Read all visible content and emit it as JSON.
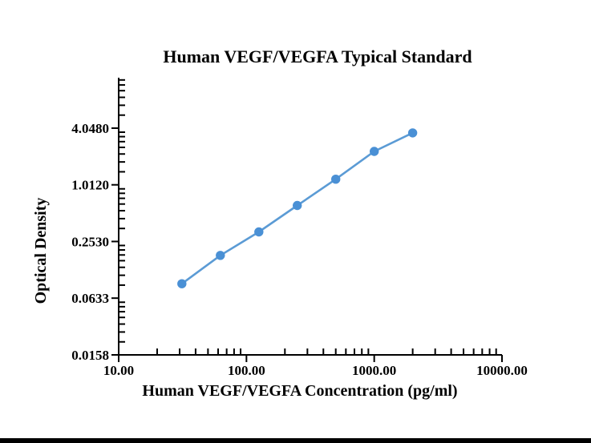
{
  "page": {
    "background_color": "#ffffff",
    "bottom_bar_color": "#000000"
  },
  "chart_data": {
    "type": "line",
    "title": "Human VEGF/VEGFA Typical Standard",
    "xlabel": "Human VEGF/VEGFA Concentration (pg/ml)",
    "ylabel": "Optical Density",
    "x_scale": "log",
    "y_scale": "log",
    "x": [
      31.25,
      62.5,
      125,
      250,
      500,
      1000,
      2000
    ],
    "y": [
      0.09,
      0.18,
      0.32,
      0.61,
      1.16,
      2.29,
      3.6
    ],
    "xlim": [
      10,
      10000
    ],
    "ylim": [
      0.0158,
      13.9
    ],
    "x_ticks": [
      {
        "label": "10.00",
        "value": 10
      },
      {
        "label": "100.00",
        "value": 100
      },
      {
        "label": "1000.00",
        "value": 1000
      },
      {
        "label": "10000.00",
        "value": 10000
      }
    ],
    "y_ticks": [
      {
        "label": "4.0480",
        "value": 4.048
      },
      {
        "label": "1.0120",
        "value": 1.012
      },
      {
        "label": "0.2530",
        "value": 0.253
      },
      {
        "label": "0.0633",
        "value": 0.0633
      },
      {
        "label": "0.0158",
        "value": 0.0158
      }
    ],
    "grid": false,
    "legend": false,
    "axis_color": "#000000",
    "line_color": "#5b9bd5",
    "marker_color": "#4a90d5"
  }
}
